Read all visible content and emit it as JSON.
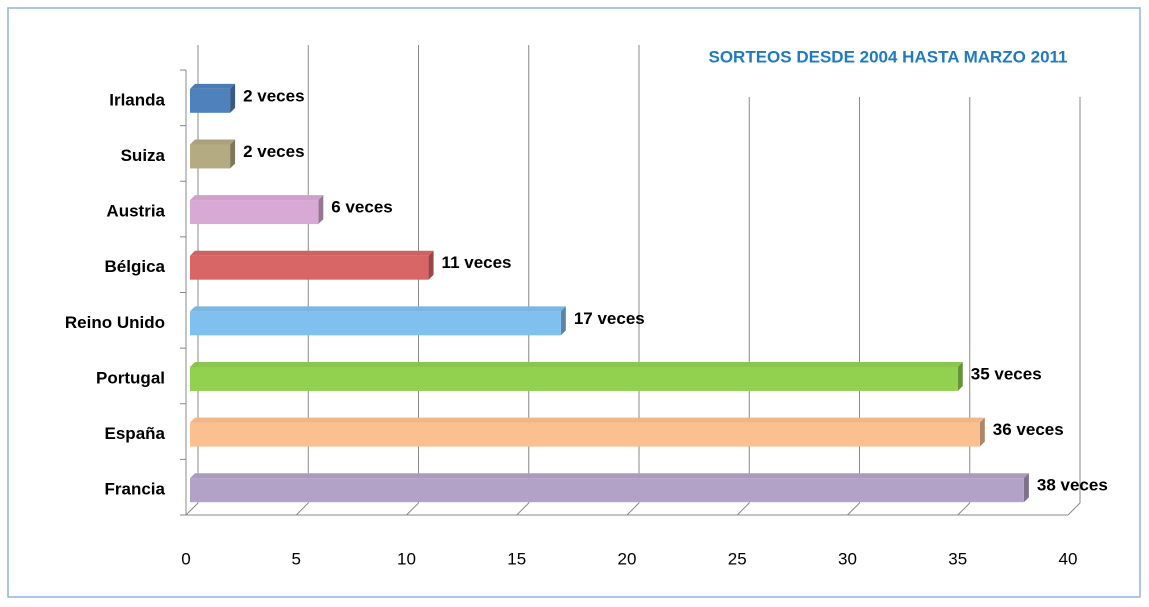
{
  "chart_data": {
    "type": "bar",
    "orientation": "horizontal",
    "title": "SORTEOS DESDE 2004 HASTA MARZO 2011",
    "categories": [
      "Irlanda",
      "Suiza",
      "Austria",
      "Bélgica",
      "Reino Unido",
      "Portugal",
      "España",
      "Francia"
    ],
    "values": [
      2,
      2,
      6,
      11,
      17,
      35,
      36,
      38
    ],
    "value_labels": [
      "2 veces",
      "2 veces",
      "6 veces",
      "11 veces",
      "17 veces",
      "35 veces",
      "36 veces",
      "38 veces"
    ],
    "colors": [
      "#4f81bd",
      "#b4ab82",
      "#d8a9d4",
      "#d96666",
      "#7fc0ee",
      "#92d050",
      "#fac090",
      "#b3a2c7"
    ],
    "xlim": [
      0,
      40
    ],
    "xticks": [
      0,
      5,
      10,
      15,
      20,
      25,
      30,
      35,
      40
    ],
    "grid": true
  }
}
